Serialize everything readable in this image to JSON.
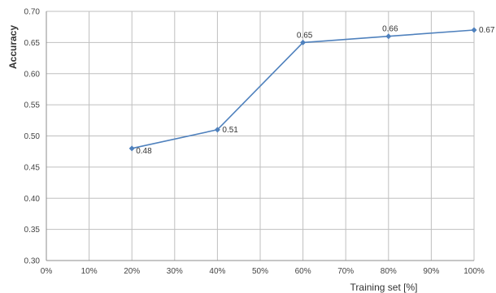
{
  "chart_data": {
    "type": "line",
    "title": "",
    "xlabel": "Training set [%]",
    "ylabel": "Accuracy",
    "xlim": [
      0,
      100
    ],
    "ylim": [
      0.3,
      0.7
    ],
    "x_ticks": [
      "0%",
      "10%",
      "20%",
      "30%",
      "40%",
      "50%",
      "60%",
      "70%",
      "80%",
      "90%",
      "100%"
    ],
    "y_ticks": [
      "0.30",
      "0.35",
      "0.40",
      "0.45",
      "0.50",
      "0.55",
      "0.60",
      "0.65",
      "0.70"
    ],
    "grid": true,
    "legend": "none",
    "series": [
      {
        "x": [
          20,
          40,
          60,
          80,
          100
        ],
        "values": [
          0.48,
          0.51,
          0.65,
          0.66,
          0.67
        ],
        "data_labels": [
          "0.48",
          "0.51",
          "0.65",
          "0.66",
          "0.67"
        ],
        "color": "#4f81bd"
      }
    ],
    "grid_color": "#bfbfbf",
    "axis_color": "#8c8c8c"
  }
}
